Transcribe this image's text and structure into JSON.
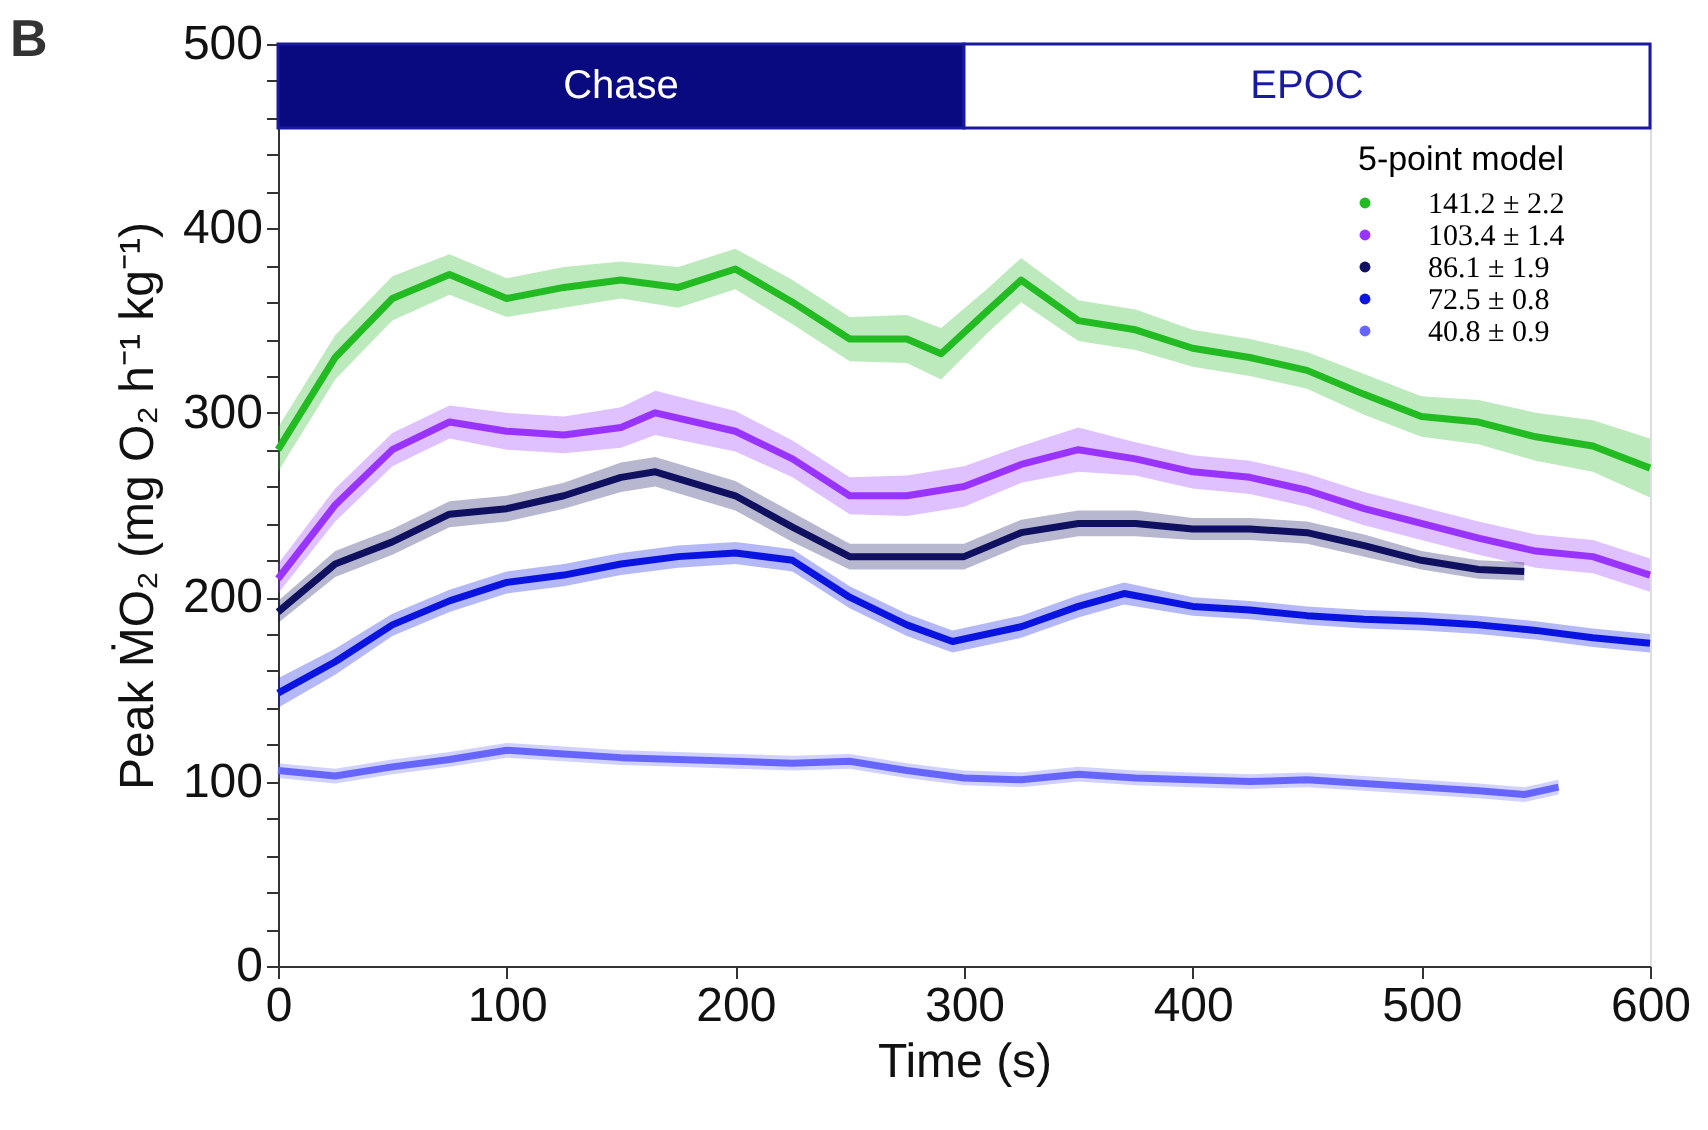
{
  "chart_data": {
    "type": "line",
    "xlabel": "Time (s)",
    "ylabel": "Peak ṀO₂ (mg O₂ h⁻¹ kg⁻¹)",
    "legend_title": "5-point model",
    "legend": "top right",
    "grid": false,
    "xlim": [
      0,
      600
    ],
    "xticks": [
      0,
      100,
      200,
      300,
      400,
      500,
      600
    ],
    "ylim": [
      0,
      500
    ],
    "yticks": [
      0,
      {
        "value": 20,
        "label": null
      },
      {
        "value": 40,
        "label": null
      },
      {
        "value": 60,
        "label": null
      },
      {
        "value": 80,
        "label": null
      },
      100,
      {
        "value": 120,
        "label": null
      },
      {
        "value": 140,
        "label": null
      },
      {
        "value": 160,
        "label": null
      },
      {
        "value": 180,
        "label": null
      },
      200,
      {
        "value": 220,
        "label": null
      },
      {
        "value": 240,
        "label": null
      },
      {
        "value": 260,
        "label": null
      },
      {
        "value": 280,
        "label": null
      },
      300,
      {
        "value": 320,
        "label": null
      },
      {
        "value": 340,
        "label": null
      },
      {
        "value": 360,
        "label": null
      },
      {
        "value": 380,
        "label": null
      },
      400,
      {
        "value": 420,
        "label": null
      },
      {
        "value": 440,
        "label": null
      },
      {
        "value": 460,
        "label": null
      },
      {
        "value": 480,
        "label": null
      },
      500
    ],
    "bands": [
      {
        "axis": "x",
        "from": 0,
        "to": 300,
        "label": "Chase",
        "color": "#0a0a80"
      },
      {
        "axis": "x",
        "from": 300,
        "to": 600,
        "label": "EPOC",
        "color": "#ffffff"
      }
    ],
    "annotations": [
      "B"
    ],
    "series": [
      {
        "name": "141.2 ± 2.2",
        "color": "#22bb22",
        "x": [
          0,
          25,
          50,
          75,
          100,
          125,
          150,
          175,
          200,
          225,
          250,
          275,
          290,
          310,
          325,
          350,
          375,
          400,
          425,
          450,
          475,
          500,
          525,
          550,
          575,
          600
        ],
        "values": [
          280,
          330,
          362,
          375,
          362,
          368,
          372,
          368,
          378,
          360,
          340,
          340,
          332,
          355,
          372,
          350,
          345,
          335,
          330,
          323,
          310,
          298,
          295,
          287,
          282,
          270
        ],
        "lower": [
          268,
          318,
          350,
          364,
          352,
          357,
          362,
          357,
          367,
          348,
          328,
          327,
          318,
          343,
          360,
          339,
          334,
          325,
          320,
          313,
          299,
          287,
          283,
          274,
          268,
          254
        ],
        "upper": [
          292,
          342,
          374,
          386,
          373,
          379,
          382,
          379,
          389,
          372,
          352,
          353,
          346,
          367,
          384,
          361,
          356,
          345,
          340,
          333,
          321,
          309,
          307,
          300,
          296,
          286
        ]
      },
      {
        "name": "103.4 ± 1.4",
        "color": "#9933ff",
        "x": [
          0,
          25,
          50,
          75,
          100,
          125,
          150,
          165,
          200,
          225,
          250,
          275,
          300,
          325,
          350,
          375,
          400,
          425,
          450,
          475,
          500,
          525,
          550,
          575,
          600
        ],
        "values": [
          210,
          250,
          280,
          295,
          290,
          288,
          292,
          300,
          290,
          275,
          255,
          255,
          260,
          272,
          280,
          275,
          268,
          265,
          258,
          248,
          240,
          232,
          225,
          222,
          212
        ],
        "lower": [
          202,
          241,
          271,
          286,
          280,
          278,
          281,
          288,
          279,
          265,
          245,
          244,
          249,
          262,
          268,
          266,
          259,
          256,
          249,
          239,
          231,
          223,
          216,
          213,
          203
        ],
        "upper": [
          218,
          259,
          289,
          304,
          300,
          298,
          303,
          312,
          301,
          285,
          265,
          266,
          271,
          282,
          292,
          284,
          277,
          274,
          267,
          257,
          249,
          241,
          234,
          231,
          221
        ]
      },
      {
        "name": "86.1 ± 1.9",
        "color": "#101060",
        "x": [
          0,
          25,
          50,
          75,
          100,
          125,
          150,
          165,
          200,
          225,
          250,
          275,
          300,
          325,
          350,
          375,
          400,
          425,
          450,
          475,
          500,
          525,
          545
        ],
        "values": [
          192,
          218,
          230,
          245,
          248,
          255,
          265,
          268,
          255,
          238,
          222,
          222,
          222,
          235,
          240,
          240,
          237,
          237,
          235,
          228,
          220,
          215,
          214
        ],
        "lower": [
          186,
          211,
          223,
          238,
          241,
          248,
          257,
          260,
          247,
          230,
          215,
          215,
          215,
          228,
          233,
          233,
          231,
          231,
          229,
          222,
          215,
          210,
          209
        ],
        "upper": [
          198,
          225,
          237,
          252,
          255,
          262,
          273,
          276,
          263,
          246,
          229,
          229,
          229,
          242,
          247,
          247,
          243,
          243,
          241,
          234,
          225,
          220,
          219
        ]
      },
      {
        "name": "72.5 ± 0.8",
        "color": "#0a14e0",
        "x": [
          0,
          25,
          50,
          75,
          100,
          125,
          150,
          175,
          200,
          225,
          250,
          275,
          295,
          325,
          350,
          370,
          400,
          425,
          450,
          475,
          500,
          525,
          550,
          575,
          600
        ],
        "values": [
          148,
          165,
          185,
          198,
          208,
          212,
          218,
          222,
          224,
          220,
          200,
          185,
          176,
          184,
          195,
          202,
          195,
          193,
          190,
          188,
          187,
          185,
          182,
          178,
          175
        ],
        "lower": [
          140,
          158,
          179,
          192,
          202,
          206,
          212,
          216,
          218,
          214,
          194,
          179,
          170,
          178,
          189,
          196,
          190,
          188,
          185,
          183,
          182,
          180,
          177,
          173,
          170
        ],
        "upper": [
          156,
          172,
          191,
          204,
          214,
          218,
          224,
          228,
          230,
          226,
          206,
          191,
          182,
          190,
          201,
          208,
          200,
          198,
          195,
          193,
          192,
          190,
          187,
          183,
          180
        ]
      },
      {
        "name": "40.8 ± 0.9",
        "color": "#6666ff",
        "x": [
          0,
          25,
          50,
          75,
          100,
          125,
          150,
          175,
          200,
          225,
          250,
          275,
          300,
          325,
          350,
          375,
          400,
          425,
          450,
          475,
          500,
          525,
          545,
          560
        ],
        "values": [
          106,
          103,
          108,
          112,
          117,
          115,
          113,
          112,
          111,
          110,
          111,
          106,
          102,
          101,
          104,
          102,
          101,
          100,
          101,
          99,
          97,
          95,
          93,
          97
        ],
        "lower": [
          102,
          99,
          104,
          108,
          113,
          111,
          109,
          108,
          107,
          106,
          107,
          102,
          98,
          97,
          100,
          98,
          97,
          96,
          97,
          95,
          93,
          91,
          89,
          93
        ],
        "upper": [
          110,
          107,
          112,
          116,
          121,
          119,
          117,
          116,
          115,
          114,
          115,
          110,
          106,
          105,
          108,
          106,
          105,
          104,
          105,
          103,
          101,
          99,
          97,
          101
        ]
      }
    ]
  }
}
